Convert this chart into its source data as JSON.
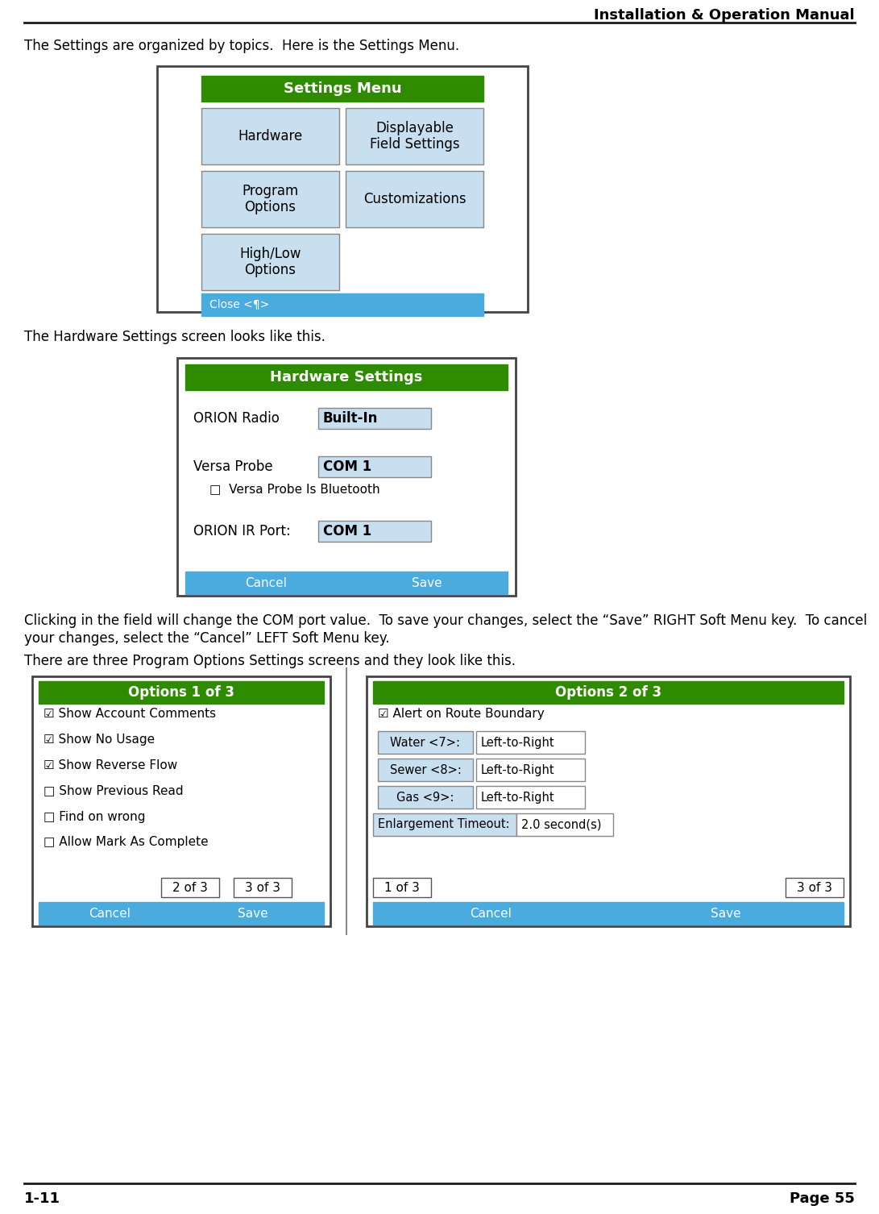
{
  "page_title": "Installation & Operation Manual",
  "footer_left": "1-11",
  "footer_right": "Page 55",
  "header_line_color": "#1a1a1a",
  "footer_line_color": "#1a1a1a",
  "body_text_color": "#000000",
  "para1": "The Settings are organized by topics.  Here is the Settings Menu.",
  "para2": "The Hardware Settings screen looks like this.",
  "para3a": "Clicking in the field will change the COM port value.  To save your changes, select the “Save” RIGHT Soft Menu key.  To cancel",
  "para3b": "your changes, select the “Cancel” LEFT Soft Menu key.",
  "para4": "There are three Program Options Settings screens and they look like this.",
  "green_title_bg": "#2e8b00",
  "blue_footer_bg": "#4aabdf",
  "blue_footer_fg": "#ffffff",
  "button_bg": "#c8dff0",
  "button_border": "#888888",
  "value_bg": "#c8dff0",
  "value_border": "#888888",
  "screen_border": "#555555",
  "screen_bg": "#ffffff",
  "bg_color": "#ffffff",
  "settings_menu": {
    "title": "Settings Menu",
    "footer_text": "Close <¶>",
    "btn_left": [
      "Hardware",
      "Program\nOptions",
      "High/Low\nOptions"
    ],
    "btn_right": [
      "Displayable\nField Settings",
      "Customizations"
    ]
  },
  "hardware_settings": {
    "title": "Hardware Settings",
    "row1_label": "ORION Radio",
    "row1_value": "Built-In",
    "row2_label": "Versa Probe",
    "row2_value": "COM 1",
    "row2_check": "□  Versa Probe Is Bluetooth",
    "row3_label": "ORION IR Port:",
    "row3_value": "COM 1",
    "cancel_text": "Cancel",
    "save_text": "Save"
  },
  "options1": {
    "title": "Options 1 of 3",
    "items": [
      "☑ Show Account Comments",
      "☑ Show No ̲Usage",
      "☑ Show ̲Reverse Flow",
      "□ Show ̲Previous Read",
      "□ ̲Find on wrong",
      "□ Allow ̲Mark As Complete"
    ],
    "nav_buttons": [
      "2 of 3",
      "3 of 3"
    ],
    "cancel_text": "Cancel",
    "save_text": "Save"
  },
  "options1_items_plain": [
    "☑ Show Account Comments",
    "☑ Show No Usage",
    "☑ Show Reverse Flow",
    "□ Show Previous Read",
    "□ Find on wrong",
    "□ Allow Mark As Complete"
  ],
  "options2": {
    "title": "Options 2 of 3",
    "check_item": "☑ Alert on Route Boundary",
    "rows": [
      [
        "Water <7>:",
        "Left-to-Right"
      ],
      [
        "Sewer <8>:",
        "Left-to-Right"
      ],
      [
        "Gas <9>:",
        "Left-to-Right"
      ]
    ],
    "enlarge_label": "Enlargement Timeout:",
    "enlarge_value": "2.0 second(s)",
    "nav_buttons": [
      "1 of 3",
      "3 of 3"
    ],
    "cancel_text": "Cancel",
    "save_text": "Save"
  }
}
